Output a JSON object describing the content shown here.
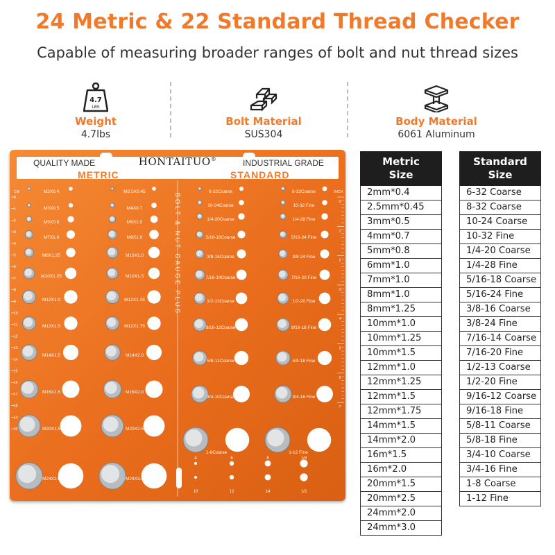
{
  "header": {
    "title": "24 Metric & 22 Standard Thread Checker",
    "subtitle": "Capable of measuring broader ranges of bolt and nut thread sizes"
  },
  "specs": [
    {
      "label": "Weight",
      "value": "4.7lbs",
      "icon": "weight-icon",
      "icon_text": "4.7",
      "icon_subtext": "LBS"
    },
    {
      "label": "Bolt Material",
      "value": "SUS304",
      "icon": "ingot-icon"
    },
    {
      "label": "Body Material",
      "value": "6061 Aluminum",
      "icon": "i-beam-icon"
    }
  ],
  "plate": {
    "left_label": "QUALITY MADE",
    "brand": "HONTAITUO",
    "brand_mark": "®",
    "right_label": "INDUSTRIAL GRADE",
    "metric_label": "METRIC",
    "standard_label": "STANDARD",
    "center_text": "BOLT & NUT GAUGE PLUS",
    "cm_label": "CM",
    "inch_label": "INCH",
    "cm_ticks": [
      "0",
      "1",
      "2",
      "3",
      "4",
      "5",
      "6",
      "7",
      "8",
      "9",
      "10",
      "11",
      "12",
      "13",
      "14",
      "15",
      "16",
      "17",
      "18",
      "19",
      "20"
    ],
    "inch_ticks": [
      "0",
      "1",
      "2",
      "3",
      "4",
      "5",
      "6",
      "7"
    ],
    "metric_gauges": [
      {
        "label": "M2X0.4",
        "d": 2
      },
      {
        "label": "M2.5X0.45",
        "d": 2.5
      },
      {
        "label": "M3X0.5",
        "d": 3
      },
      {
        "label": "M4X0.7",
        "d": 4
      },
      {
        "label": "M5X0.8",
        "d": 5
      },
      {
        "label": "M6X1.0",
        "d": 6
      },
      {
        "label": "M7X1.0",
        "d": 7
      },
      {
        "label": "M8X1.0",
        "d": 8
      },
      {
        "label": "M8X1.25",
        "d": 8
      },
      {
        "label": "M10X1.0",
        "d": 10
      },
      {
        "label": "M10X1.25",
        "d": 10
      },
      {
        "label": "M10X1.5",
        "d": 10
      },
      {
        "label": "M12X1.0",
        "d": 12
      },
      {
        "label": "M12X1.25",
        "d": 12
      },
      {
        "label": "M12X1.5",
        "d": 12
      },
      {
        "label": "M12X1.75",
        "d": 12
      },
      {
        "label": "M14X1.5",
        "d": 14
      },
      {
        "label": "M14X2.0",
        "d": 14
      },
      {
        "label": "M16X1.5",
        "d": 16
      },
      {
        "label": "M16X2.0",
        "d": 16
      },
      {
        "label": "M20X1.5",
        "d": 20
      },
      {
        "label": "M20X2.5",
        "d": 20
      },
      {
        "label": "M24X2.0",
        "d": 24
      },
      {
        "label": "M24X3.0",
        "d": 24
      }
    ],
    "standard_gauges": [
      {
        "label": "6-32Coarse",
        "d": 3.5
      },
      {
        "label": "8-32Coarse",
        "d": 4.2
      },
      {
        "label": "10-24Coarse",
        "d": 4.8
      },
      {
        "label": "10-32 Fine",
        "d": 4.8
      },
      {
        "label": "1/4-20Coarse",
        "d": 6.4
      },
      {
        "label": "1/4-28 Fine",
        "d": 6.4
      },
      {
        "label": "5/16-18Coarse",
        "d": 7.9
      },
      {
        "label": "5/16-24 Fine",
        "d": 7.9
      },
      {
        "label": "3/8-16Coarse",
        "d": 9.5
      },
      {
        "label": "3/8-24 Fine",
        "d": 9.5
      },
      {
        "label": "7/16-14Coarse",
        "d": 11.1
      },
      {
        "label": "7/16-20 Fine",
        "d": 11.1
      },
      {
        "label": "1/2-13Coarse",
        "d": 12.7
      },
      {
        "label": "1/2-20 Fine",
        "d": 12.7
      },
      {
        "label": "9/16-12Coarse",
        "d": 14.3
      },
      {
        "label": "9/16-18 Fine",
        "d": 14.3
      },
      {
        "label": "5/8-11Coarse",
        "d": 15.9
      },
      {
        "label": "5/8-18 Fine",
        "d": 15.9
      },
      {
        "label": "3/4-10Coarse",
        "d": 19
      },
      {
        "label": "3/4-16 Fine",
        "d": 19
      },
      {
        "label": "1-8Coarse",
        "d": 25.4
      },
      {
        "label": "1-12 Fine",
        "d": 25.4
      }
    ],
    "small_holes": [
      "4",
      "6",
      "8",
      "1/4",
      "10",
      "12",
      "14",
      "1/2"
    ]
  },
  "metric_table": {
    "header_line1": "Metric",
    "header_line2": "Size",
    "rows": [
      "2mm*0.4",
      "2.5mm*0.45",
      "3mm*0.5",
      "4mm*0.7",
      "5mm*0.8",
      "6mm*1.0",
      "7mm*1.0",
      "8mm*1.0",
      "8mm*1.25",
      "10mm*1.0",
      "10mm*1.25",
      "10mm*1.5",
      "12mm*1.0",
      "12mm*1.25",
      "12mm*1.5",
      "12mm*1.75",
      "14mm*1.5",
      "14mm*2.0",
      "16m*1.5",
      "16m*2.0",
      "20mm*1.5",
      "20mm*2.5",
      "24mm*2.0",
      "24mm*3.0"
    ]
  },
  "standard_table": {
    "header_line1": "Standard",
    "header_line2": "Size",
    "rows": [
      "6-32 Coarse",
      "8-32 Coarse",
      "10-24 Coarse",
      "10-32 Fine",
      "1/4-20 Coarse",
      "1/4-28 Fine",
      "5/16-18 Coarse",
      "5/16-24 Fine",
      "3/8-16 Coarse",
      "3/8-24 Fine",
      "7/16-14 Coarse",
      "7/16-20 Fine",
      "1/2-13 Coarse",
      "1/2-20 Fine",
      "9/16-12 Coarse",
      "9/16-18 Fine",
      "5/8-11 Coarse",
      "5/8-18 Fine",
      "3/4-10 Coarse",
      "3/4-16 Fine",
      "1-8 Coarse",
      "1-12 Fine"
    ]
  },
  "colors": {
    "accent": "#f07a2c",
    "plate": "#ec7424",
    "table_header": "#1e1e1e"
  }
}
